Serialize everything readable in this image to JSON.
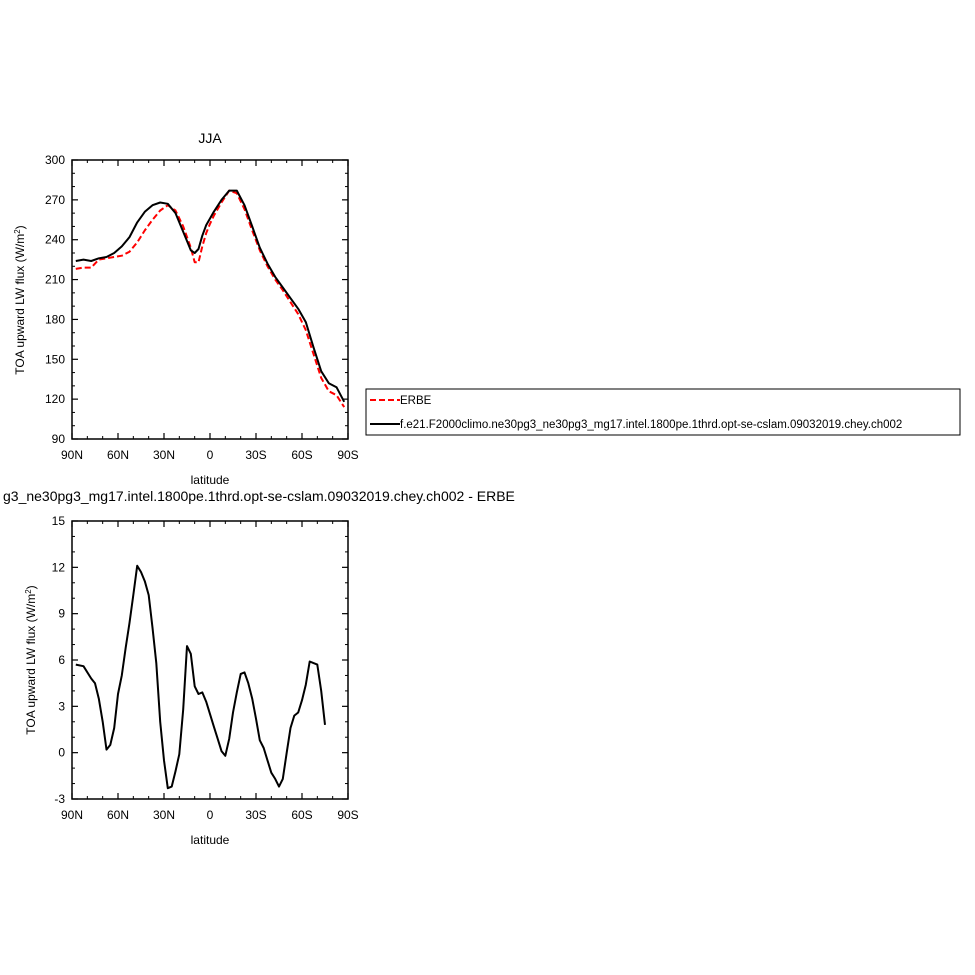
{
  "chart_data": [
    {
      "type": "line",
      "title": "JJA",
      "xlabel": "latitude",
      "ylabel": "TOA upward LW flux (W/m",
      "ylabel_sup": "2",
      "ylabel_close": ")",
      "xlim": [
        90,
        -90
      ],
      "ylim": [
        90,
        300
      ],
      "xticks": [
        90,
        60,
        30,
        0,
        -30,
        -60,
        -90
      ],
      "xtick_labels": [
        "90N",
        "60N",
        "30N",
        "0",
        "30S",
        "60S",
        "90S"
      ],
      "yticks": [
        90,
        120,
        150,
        180,
        210,
        240,
        270,
        300
      ],
      "ytick_labels": [
        "90",
        "120",
        "150",
        "180",
        "210",
        "240",
        "270",
        "300"
      ],
      "grid": false,
      "legend": "right",
      "series": [
        {
          "name": "ERBE",
          "color": "#ff0000",
          "style": "dashed",
          "x": [
            87.5,
            82.5,
            77.5,
            72.5,
            67.5,
            62.5,
            57.5,
            52.5,
            47.5,
            42.5,
            37.5,
            32.5,
            27.5,
            22.5,
            17.5,
            12.5,
            10,
            7.5,
            5,
            2.5,
            0,
            -2.5,
            -7.5,
            -12.5,
            -17.5,
            -22.5,
            -27.5,
            -32.5,
            -37.5,
            -42.5,
            -47.5,
            -52.5,
            -57.5,
            -62.5,
            -67.5,
            -72.5,
            -77.5,
            -82.5,
            -87.5
          ],
          "values": [
            218,
            219,
            219,
            225,
            226,
            227,
            228,
            231,
            238,
            247,
            255,
            262,
            266,
            262,
            250,
            234,
            223,
            223,
            235,
            245,
            252,
            258,
            268,
            277,
            275,
            263,
            247,
            232,
            220,
            210,
            202,
            193,
            184,
            172,
            154,
            136,
            126,
            123,
            114
          ]
        },
        {
          "name": "f.e21.F2000climo.ne30pg3_ne30pg3_mg17.intel.1800pe.1thrd.opt-se-cslam.09032019.chey.ch002",
          "color": "#000000",
          "style": "solid",
          "x": [
            87.5,
            82.5,
            77.5,
            72.5,
            67.5,
            62.5,
            57.5,
            52.5,
            47.5,
            42.5,
            37.5,
            32.5,
            27.5,
            22.5,
            17.5,
            12.5,
            10,
            7.5,
            5,
            2.5,
            0,
            -2.5,
            -7.5,
            -12.5,
            -17.5,
            -22.5,
            -27.5,
            -32.5,
            -37.5,
            -42.5,
            -47.5,
            -52.5,
            -57.5,
            -62.5,
            -67.5,
            -72.5,
            -77.5,
            -82.5,
            -87.5
          ],
          "values": [
            224,
            225,
            224,
            226,
            227,
            230,
            235,
            242,
            253,
            261,
            266,
            268,
            267,
            260,
            246,
            232,
            230,
            233,
            243,
            251,
            256,
            261,
            270,
            277,
            277,
            266,
            250,
            234,
            222,
            212,
            204,
            196,
            188,
            178,
            159,
            141,
            132,
            129,
            118
          ]
        }
      ]
    },
    {
      "type": "line",
      "title": "g3_ne30pg3_mg17.intel.1800pe.1thrd.opt-se-cslam.09032019.chey.ch002 - ERBE",
      "xlabel": "latitude",
      "ylabel": "TOA upward LW flux (W/m",
      "ylabel_sup": "2",
      "ylabel_close": ")",
      "xlim": [
        90,
        -90
      ],
      "ylim": [
        -3,
        15
      ],
      "xticks": [
        90,
        60,
        30,
        0,
        -30,
        -60,
        -90
      ],
      "xtick_labels": [
        "90N",
        "60N",
        "30N",
        "0",
        "30S",
        "60S",
        "90S"
      ],
      "yticks": [
        -3,
        0,
        3,
        6,
        9,
        12,
        15
      ],
      "ytick_labels": [
        "-3",
        "0",
        "3",
        "6",
        "9",
        "12",
        "15"
      ],
      "grid": false,
      "series": [
        {
          "color": "#000000",
          "style": "solid",
          "x": [
            87.5,
            82.5,
            77.5,
            75,
            72.5,
            70,
            67.5,
            65,
            62.5,
            60,
            57.5,
            55,
            52.5,
            50,
            47.5,
            45,
            42.5,
            40,
            37.5,
            35,
            32.5,
            30,
            27.5,
            25,
            22.5,
            20,
            17.5,
            15,
            12.5,
            10,
            7.5,
            5,
            2.5,
            0,
            -2.5,
            -5,
            -7.5,
            -10,
            -12.5,
            -15,
            -17.5,
            -20,
            -22.5,
            -25,
            -27.5,
            -30,
            -32.5,
            -35,
            -37.5,
            -40,
            -42.5,
            -45,
            -47.5,
            -50,
            -52.5,
            -55,
            -57.5,
            -60,
            -62.5,
            -65,
            -67.5,
            -70,
            -72.5,
            -75,
            -77.5,
            -80,
            -82.5,
            -85,
            -87.5
          ],
          "values": [
            5.7,
            5.6,
            4.8,
            4.5,
            3.5,
            2.0,
            0.2,
            0.5,
            1.6,
            3.8,
            5.0,
            6.8,
            8.4,
            10.2,
            12.1,
            11.7,
            11.1,
            10.2,
            8.1,
            5.8,
            2.0,
            -0.5,
            -2.3,
            -2.2,
            -1.2,
            -0.1,
            2.8,
            6.9,
            6.4,
            4.3,
            3.8,
            3.9,
            3.3,
            2.5,
            1.7,
            0.9,
            0.1,
            -0.2,
            0.9,
            2.6,
            3.9,
            5.1,
            5.2,
            4.5,
            3.5,
            2.2,
            0.8,
            0.3,
            -0.5,
            -1.3,
            -1.7,
            -2.2,
            -1.7,
            0.0,
            1.6,
            2.4,
            2.6,
            3.4,
            4.4,
            5.9,
            5.8,
            5.7,
            4.0,
            1.8,
            null,
            null,
            null,
            null,
            null
          ]
        }
      ]
    }
  ]
}
